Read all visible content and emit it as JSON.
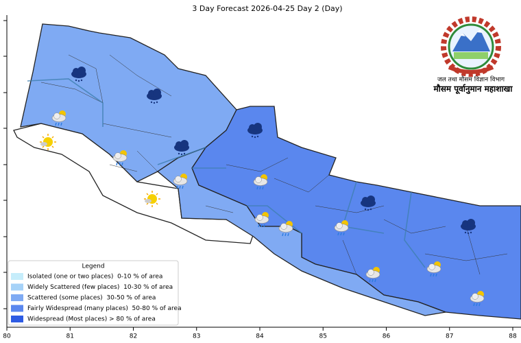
{
  "title": "3 Day Forecast 2026-04-25 Day 2 (Day)",
  "logo": {
    "line1": "जल तथा मौसम विज्ञान विभाग",
    "line2": "मौसम पूर्वानुमान महाशाखा"
  },
  "legend": {
    "title": "Legend",
    "items": [
      {
        "label": "Isolated (one or two places)  0-10 % of area",
        "color": "#c6edfb"
      },
      {
        "label": "Widely Scattered (few places)  10-30 % of area",
        "color": "#a6d2f8"
      },
      {
        "label": "Scattered (some places)  30-50 % of area",
        "color": "#7faaf3"
      },
      {
        "label": "Fairly Widespread (many places)  50-80 % of area",
        "color": "#5a87ee"
      },
      {
        "label": "Widespread (Most places) > 80 % of area",
        "color": "#2d5be3"
      }
    ]
  },
  "x_axis": {
    "xlim": [
      80,
      88.13
    ],
    "xticks": [
      80,
      81,
      82,
      83,
      84,
      85,
      86,
      87,
      88
    ]
  }
}
